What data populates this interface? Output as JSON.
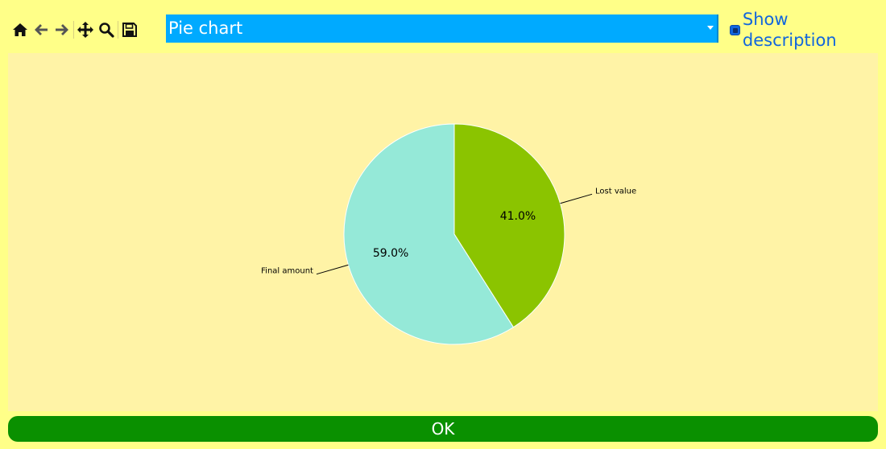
{
  "toolbar": {
    "icons": [
      "home-icon",
      "back-arrow-icon",
      "forward-arrow-icon",
      "pan-icon",
      "zoom-icon",
      "save-icon"
    ]
  },
  "chart_selector": {
    "selected": "Pie chart"
  },
  "description_toggle": {
    "label": "Show description",
    "checked": false
  },
  "colors": {
    "page_bg": "#ffff88",
    "canvas_bg": "#fff3a6",
    "selector_bg": "#00aaff",
    "ok_bg": "#0a9000",
    "link": "#1166dd"
  },
  "chart_data": {
    "type": "pie",
    "start_angle_deg": 90,
    "direction": "clockwise",
    "slices": [
      {
        "label": "Lost value",
        "value": 41.0,
        "pct_label": "41.0%",
        "color": "#8bc400"
      },
      {
        "label": "Final amount",
        "value": 59.0,
        "pct_label": "59.0%",
        "color": "#95e9d8"
      }
    ]
  },
  "ok_button": {
    "label": "OK"
  }
}
